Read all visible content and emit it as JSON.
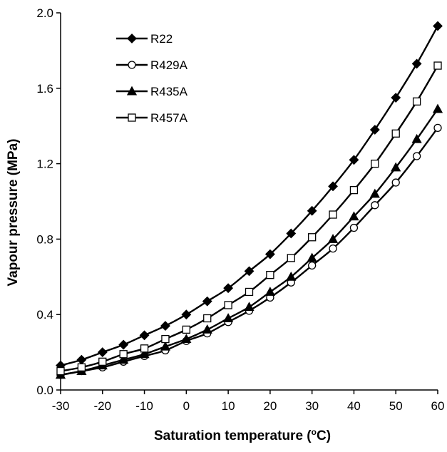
{
  "chart_data": {
    "type": "line",
    "title": "",
    "xlabel": "Saturation temperature (",
    "xlabel_sup": "o",
    "xlabel_unit": "C)",
    "ylabel": "Vapour pressure (MPa)",
    "xlim": [
      -30,
      60
    ],
    "ylim": [
      0.0,
      2.0
    ],
    "xticks": [
      -30,
      -20,
      -10,
      0,
      10,
      20,
      30,
      40,
      50,
      60
    ],
    "xtick_labels": [
      "-30",
      "-20",
      "-10",
      "0",
      "10",
      "20",
      "30",
      "40",
      "50",
      "60"
    ],
    "yticks": [
      0.0,
      0.4,
      0.8,
      1.2,
      1.6,
      2.0
    ],
    "ytick_labels": [
      "0.0",
      "0.4",
      "0.8",
      "1.2",
      "1.6",
      "2.0"
    ],
    "grid": false,
    "legend_position": "top-left",
    "x": [
      -30,
      -25,
      -20,
      -15,
      -10,
      -5,
      0,
      5,
      10,
      15,
      20,
      25,
      30,
      35,
      40,
      45,
      50,
      55,
      60
    ],
    "series": [
      {
        "name": "R22",
        "marker": "diamond-filled",
        "color": "#000000",
        "values": [
          0.13,
          0.16,
          0.2,
          0.24,
          0.29,
          0.34,
          0.4,
          0.47,
          0.54,
          0.63,
          0.72,
          0.83,
          0.95,
          1.08,
          1.22,
          1.38,
          1.55,
          1.73,
          1.93
        ]
      },
      {
        "name": "R429A",
        "marker": "circle-open",
        "color": "#000000",
        "values": [
          0.08,
          0.1,
          0.12,
          0.15,
          0.18,
          0.21,
          0.26,
          0.3,
          0.36,
          0.42,
          0.49,
          0.57,
          0.66,
          0.75,
          0.86,
          0.98,
          1.1,
          1.24,
          1.39
        ]
      },
      {
        "name": "R435A",
        "marker": "triangle-filled",
        "color": "#000000",
        "values": [
          0.08,
          0.1,
          0.13,
          0.16,
          0.19,
          0.23,
          0.27,
          0.32,
          0.38,
          0.44,
          0.52,
          0.6,
          0.7,
          0.8,
          0.92,
          1.04,
          1.18,
          1.33,
          1.49
        ]
      },
      {
        "name": "R457A",
        "marker": "square-open",
        "color": "#000000",
        "values": [
          0.1,
          0.12,
          0.15,
          0.19,
          0.22,
          0.27,
          0.32,
          0.38,
          0.45,
          0.52,
          0.61,
          0.7,
          0.81,
          0.93,
          1.06,
          1.2,
          1.36,
          1.53,
          1.72
        ]
      }
    ]
  }
}
